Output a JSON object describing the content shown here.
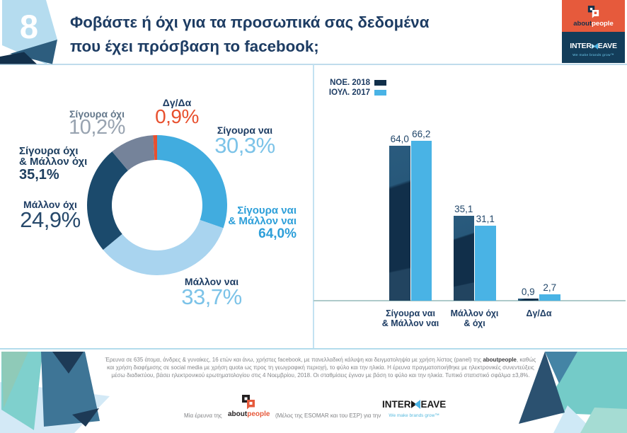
{
  "slide_number": "8",
  "title_line1": "Φοβάστε ή όχι για τα προσωπικά σας δεδομένα",
  "title_line2": "που έχει πρόσβαση το facebook;",
  "header_logos": {
    "aboutpeople": {
      "name_about": "about",
      "name_people": "people"
    },
    "interweave": {
      "name_inter": "INTER",
      "name_eave": "EAVE",
      "tagline": "We make brands grow™"
    }
  },
  "chart_data": [
    {
      "type": "pie",
      "variant": "donut",
      "start_angle": "top",
      "direction": "clockwise",
      "segments": [
        {
          "label": "Σίγουρα ναι",
          "value": 30.3,
          "display": "30,3%",
          "color": "#41acdf"
        },
        {
          "label": "Μάλλον ναι",
          "value": 33.7,
          "display": "33,7%",
          "color": "#a9d4ef"
        },
        {
          "label": "Μάλλον όχι",
          "value": 24.9,
          "display": "24,9%",
          "color": "#1b4a6c"
        },
        {
          "label": "Σίγουρα όχι",
          "value": 10.2,
          "display": "10,2%",
          "color": "#75839a"
        },
        {
          "label": "Δγ/Δα",
          "value": 0.9,
          "display": "0,9%",
          "color": "#e8502e"
        }
      ],
      "annotations": [
        {
          "line1": "Σίγουρα όχι",
          "line2": "& Μάλλον όχι",
          "display": "35,1%",
          "value": 35.1,
          "color": "#1d3e5f"
        },
        {
          "line1": "Σίγουρα ναι",
          "line2": "& Μάλλον ναι",
          "display": "64,0%",
          "value": 64.0,
          "color": "#2d9fd9"
        }
      ]
    },
    {
      "type": "bar",
      "categories": [
        "Σίγουρα ναι & Μάλλον ναι",
        "Μάλλον όχι & όχι",
        "Δγ/Δα"
      ],
      "categories_lines": [
        [
          "Σίγουρα ναι",
          "& Μάλλον ναι"
        ],
        [
          "Μάλλον όχι",
          "& όχι"
        ],
        [
          "Δγ/Δα"
        ]
      ],
      "series": [
        {
          "name": "ΝΟΕ. 2018",
          "color": "#112f4a",
          "values": [
            64.0,
            35.1,
            0.9
          ],
          "displays": [
            "64,0",
            "35,1",
            "0,9"
          ]
        },
        {
          "name": "ΙΟΥΛ. 2017",
          "color": "#49b3e5",
          "values": [
            66.2,
            31.1,
            2.7
          ],
          "displays": [
            "66,2",
            "31,1",
            "2,7"
          ]
        }
      ],
      "ylim": [
        0,
        100
      ],
      "grid": false,
      "legend_position": "top-left"
    }
  ],
  "footer": {
    "line1_pre": "Έρευνα σε 635 άτομα, άνδρες & γυναίκες, 16 ετών και άνω, χρήστες facebook, με πανελλαδική κάλυψη και δειγματοληψία με χρήση λίστας (panel) της ",
    "line1_bold": "aboutpeople",
    "line1_post": ", καθώς",
    "line2": "και χρήση διαφήμισης σε social media με χρήση quota ως προς τη γεωγραφική περιοχή, το φύλο και την ηλικία. Η έρευνα πραγματοποιήθηκε με ηλεκτρονικές συνεντεύξεις",
    "line3": "μέσω διαδικτύου, βάσει ηλεκτρονικού ερωτηματολογίου στις 4 Νοεμβρίου, 2018. Οι σταθμίσεις έγιναν με βάση το φύλο και την ηλικία. Τυπικό στατιστικό σφάλμα ±3,8%.",
    "credit_prefix": "Μία έρευνα της",
    "credit_member": "(Μέλος της ESOMAR και του ΕΣΡ)",
    "credit_for": "για την",
    "aboutpeople_about": "about",
    "aboutpeople_people": "people",
    "interweave_inter": "INTER",
    "interweave_eave": "EAVE",
    "interweave_tagline": "We make brands grow™"
  },
  "colors": {
    "title_navy": "#1d3c63",
    "accent_light_blue": "#7cc3e8",
    "accent_blue_bold": "#2d9fd9",
    "gray_label": "#64788b",
    "gray_number": "#98a3b0",
    "navy_number": "#27496b",
    "red": "#e8502e",
    "divider": "#c3e2f2",
    "axis": "#aecaca",
    "orange_block": "#e65a3c",
    "navy_block": "#133d5a"
  }
}
